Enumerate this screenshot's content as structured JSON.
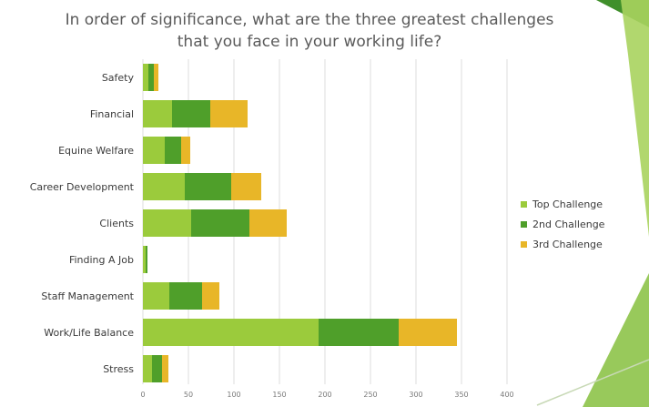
{
  "chart_data": {
    "type": "bar",
    "orientation": "horizontal",
    "stacked": true,
    "title": "In order of significance, what are the three greatest challenges that you face in your working life?",
    "title_lines": [
      "In order of significance, what are the three greatest challenges",
      "that you face in your working life?"
    ],
    "categories": [
      "Safety",
      "Financial",
      "Equine Welfare",
      "Career Development",
      "Clients",
      "Finding A Job",
      "Staff Management",
      "Work/Life Balance",
      "Stress"
    ],
    "series": [
      {
        "name": "Top Challenge",
        "color": "#9bcb3c",
        "values": [
          6,
          32,
          24,
          46,
          53,
          3,
          29,
          193,
          10
        ]
      },
      {
        "name": "2nd Challenge",
        "color": "#4f9f2a",
        "values": [
          6,
          42,
          18,
          51,
          64,
          2,
          36,
          88,
          11
        ]
      },
      {
        "name": "3rd Challenge",
        "color": "#e8b628",
        "values": [
          5,
          41,
          10,
          33,
          41,
          0,
          19,
          64,
          7
        ]
      }
    ],
    "xticks": [
      0,
      50,
      100,
      150,
      200,
      250,
      300,
      350,
      400
    ],
    "xlim": [
      0,
      400
    ],
    "grid": "vertical",
    "legend_position": "right"
  }
}
